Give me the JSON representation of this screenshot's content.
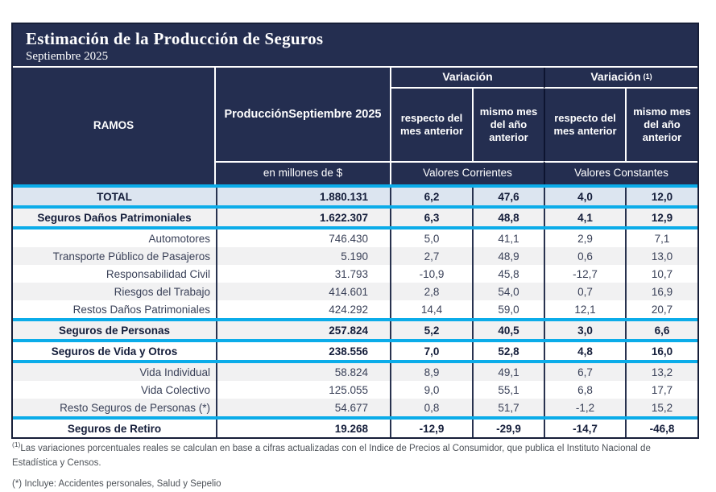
{
  "title": "Estimación de la Producción de Seguros",
  "subtitle": "Septiembre 2025",
  "header": {
    "ramos": "RAMOS",
    "produccion": "ProducciónSeptiembre 2025",
    "variacion_corrientes": "Variación",
    "variacion_constantes": "Variación",
    "variacion_sup": "(1)",
    "respecto_mes_anterior": "respecto del mes anterior",
    "mismo_mes_anio_anterior": "mismo mes del año anterior",
    "en_millones": "en millones de $",
    "valores_corrientes": "Valores Corrientes",
    "valores_constantes": "Valores Constantes"
  },
  "rows": [
    {
      "label": "TOTAL",
      "values": [
        "1.880.131",
        "6,2",
        "47,6",
        "4,0",
        "12,0"
      ]
    },
    {
      "label": "Seguros Daños Patrimoniales",
      "values": [
        "1.622.307",
        "6,3",
        "48,8",
        "4,1",
        "12,9"
      ]
    },
    {
      "label": "Automotores",
      "values": [
        "746.430",
        "5,0",
        "41,1",
        "2,9",
        "7,1"
      ]
    },
    {
      "label": "Transporte Público de Pasajeros",
      "values": [
        "5.190",
        "2,7",
        "48,9",
        "0,6",
        "13,0"
      ]
    },
    {
      "label": "Responsabilidad Civil",
      "values": [
        "31.793",
        "-10,9",
        "45,8",
        "-12,7",
        "10,7"
      ]
    },
    {
      "label": "Riesgos del Trabajo",
      "values": [
        "414.601",
        "2,8",
        "54,0",
        "0,7",
        "16,9"
      ]
    },
    {
      "label": "Restos Daños Patrimoniales",
      "values": [
        "424.292",
        "14,4",
        "59,0",
        "12,1",
        "20,7"
      ]
    },
    {
      "label": "Seguros de Personas",
      "values": [
        "257.824",
        "5,2",
        "40,5",
        "3,0",
        "6,6"
      ]
    },
    {
      "label": "Seguros de Vida y Otros",
      "values": [
        "238.556",
        "7,0",
        "52,8",
        "4,8",
        "16,0"
      ]
    },
    {
      "label": "Vida Individual",
      "values": [
        "58.824",
        "8,9",
        "49,1",
        "6,7",
        "13,2"
      ]
    },
    {
      "label": "Vida Colectivo",
      "values": [
        "125.055",
        "9,0",
        "55,1",
        "6,8",
        "17,7"
      ]
    },
    {
      "label": "Resto Seguros de Personas (*)",
      "values": [
        "54.677",
        "0,8",
        "51,7",
        "-1,2",
        "15,2"
      ]
    },
    {
      "label": "Seguros de Retiro",
      "values": [
        "19.268",
        "-12,9",
        "-29,9",
        "-14,7",
        "-46,8"
      ]
    }
  ],
  "footnotes": {
    "f1_sup": "(1)",
    "f1": "Las variaciones porcentuales reales se calculan en base a cifras actualizadas con el Indice de Precios al Consumidor, que publica el Instituto Nacional de Estadística y  Censos.",
    "f2": "(*) Incluye: Accidentes personales, Salud y Sepelio"
  },
  "colors": {
    "navy_header": "#242E50",
    "cyan_divider": "#0BACE9",
    "total_row_bg": "#DCE5F0",
    "alt_row_bg": "#F1F1F2"
  }
}
